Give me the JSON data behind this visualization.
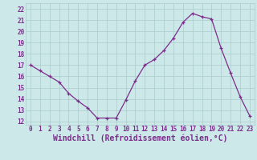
{
  "x": [
    0,
    1,
    2,
    3,
    4,
    5,
    6,
    7,
    8,
    9,
    10,
    11,
    12,
    13,
    14,
    15,
    16,
    17,
    18,
    19,
    20,
    21,
    22,
    23
  ],
  "y": [
    17.0,
    16.5,
    16.0,
    15.5,
    14.5,
    13.8,
    13.2,
    12.3,
    12.3,
    12.3,
    13.9,
    15.6,
    17.0,
    17.5,
    18.3,
    19.4,
    20.8,
    21.6,
    21.3,
    21.1,
    18.5,
    16.3,
    14.2,
    12.5
  ],
  "line_color": "#7b2d8b",
  "marker": "+",
  "background_color": "#cce8e8",
  "grid_color": "#aacccc",
  "xlabel": "Windchill (Refroidissement éolien,°C)",
  "xlabel_color": "#7b2d8b",
  "yticks": [
    12,
    13,
    14,
    15,
    16,
    17,
    18,
    19,
    20,
    21,
    22
  ],
  "xticks": [
    0,
    1,
    2,
    3,
    4,
    5,
    6,
    7,
    8,
    9,
    10,
    11,
    12,
    13,
    14,
    15,
    16,
    17,
    18,
    19,
    20,
    21,
    22,
    23
  ],
  "ylim": [
    11.7,
    22.5
  ],
  "xlim": [
    -0.5,
    23.5
  ],
  "tick_color": "#7b2d8b",
  "tick_fontsize": 5.5,
  "xlabel_fontsize": 7.0
}
